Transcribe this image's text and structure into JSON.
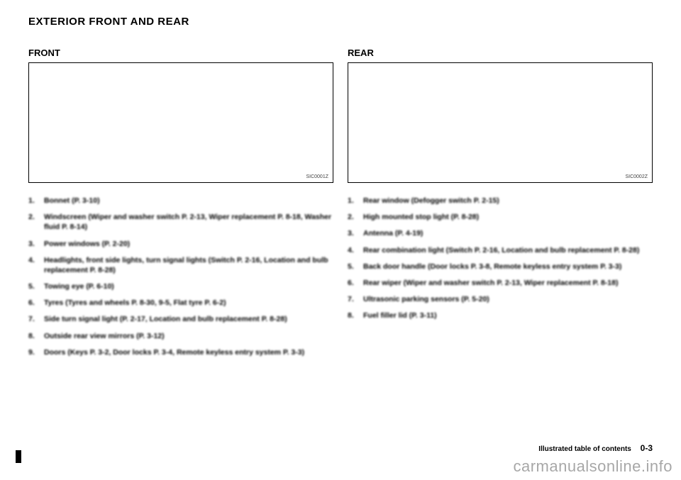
{
  "page_title": "EXTERIOR FRONT AND REAR",
  "front": {
    "title": "FRONT",
    "caption": "SIC0001Z",
    "items": [
      "Bonnet (P. 3-10)",
      "Windscreen (Wiper and washer switch P. 2-13, Wiper replacement P. 8-18, Washer fluid P. 8-14)",
      "Power windows (P. 2-20)",
      "Headlights, front side lights, turn signal lights (Switch P. 2-16, Location and bulb replacement P. 8-28)",
      "Towing eye (P. 6-10)",
      "Tyres (Tyres and wheels P. 8-30, 9-5, Flat tyre P. 6-2)",
      "Side turn signal light (P. 2-17, Location and bulb replacement P. 8-28)",
      "Outside rear view mirrors (P. 3-12)",
      "Doors (Keys P. 3-2, Door locks P. 3-4, Remote keyless entry system P. 3-3)"
    ]
  },
  "rear": {
    "title": "REAR",
    "caption": "SIC0002Z",
    "items": [
      "Rear window (Defogger switch P. 2-15)",
      "High mounted stop light (P. 8-28)",
      "Antenna (P. 4-19)",
      "Rear combination light (Switch P. 2-16, Location and bulb replacement P. 8-28)",
      "Back door handle (Door locks P. 3-8, Remote keyless entry system P. 3-3)",
      "Rear wiper (Wiper and washer switch P. 2-13, Wiper replacement P. 8-18)",
      "Ultrasonic parking sensors (P. 5-20)",
      "Fuel filler lid (P. 3-11)"
    ]
  },
  "footer_label": "Illustrated table of contents",
  "footer_page": "0-3",
  "watermark": "carmanualsonline.info"
}
